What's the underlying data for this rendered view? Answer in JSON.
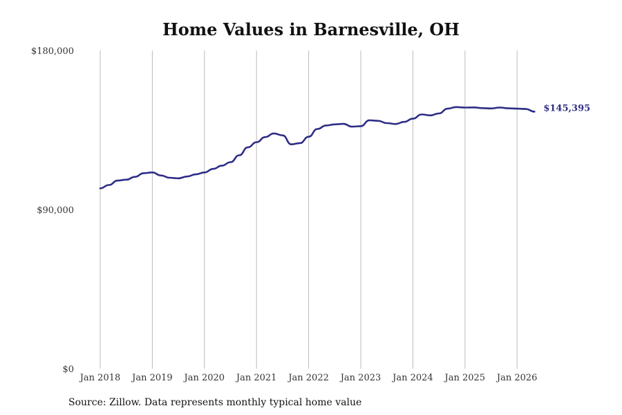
{
  "chart_data": {
    "type": "line",
    "title": "Home Values in Barnesville, OH",
    "source": "Source: Zillow. Data represents monthly typical home value",
    "xlabel": "",
    "ylabel": "",
    "ylim": [
      0,
      180000
    ],
    "y_ticks": [
      "$0",
      "$90,000",
      "$180,000"
    ],
    "y_tick_values": [
      0,
      90000,
      180000
    ],
    "x_ticks": [
      "Jan 2018",
      "Jan 2019",
      "Jan 2020",
      "Jan 2021",
      "Jan 2022",
      "Jan 2023",
      "Jan 2024",
      "Jan 2025",
      "Jan 2026"
    ],
    "grid": "vertical",
    "line_color": "#2e2d86",
    "end_label": "$145,395",
    "x": [
      "2018-01",
      "2018-03",
      "2018-05",
      "2018-07",
      "2018-09",
      "2018-11",
      "2019-01",
      "2019-03",
      "2019-05",
      "2019-07",
      "2019-09",
      "2019-11",
      "2020-01",
      "2020-03",
      "2020-05",
      "2020-07",
      "2020-09",
      "2020-11",
      "2021-01",
      "2021-03",
      "2021-05",
      "2021-07",
      "2021-09",
      "2021-11",
      "2022-01",
      "2022-03",
      "2022-05",
      "2022-07",
      "2022-09",
      "2022-11",
      "2023-01",
      "2023-03",
      "2023-05",
      "2023-07",
      "2023-09",
      "2023-11",
      "2024-01",
      "2024-03",
      "2024-05",
      "2024-07",
      "2024-09",
      "2024-11",
      "2025-01",
      "2025-03",
      "2025-05",
      "2025-07",
      "2025-09",
      "2025-11",
      "2026-01",
      "2026-03",
      "2026-05"
    ],
    "values": [
      102000,
      103900,
      106400,
      106900,
      108500,
      110600,
      111000,
      109300,
      108000,
      107700,
      108700,
      109900,
      111000,
      113000,
      114800,
      116800,
      120700,
      125200,
      128100,
      131000,
      133100,
      132000,
      126900,
      127600,
      131200,
      135600,
      137600,
      138200,
      138500,
      136900,
      137200,
      140500,
      140200,
      138900,
      138400,
      139600,
      141400,
      143800,
      143300,
      144400,
      147100,
      148000,
      147700,
      147800,
      147400,
      147200,
      147700,
      147300,
      147100,
      146900,
      145395
    ]
  }
}
